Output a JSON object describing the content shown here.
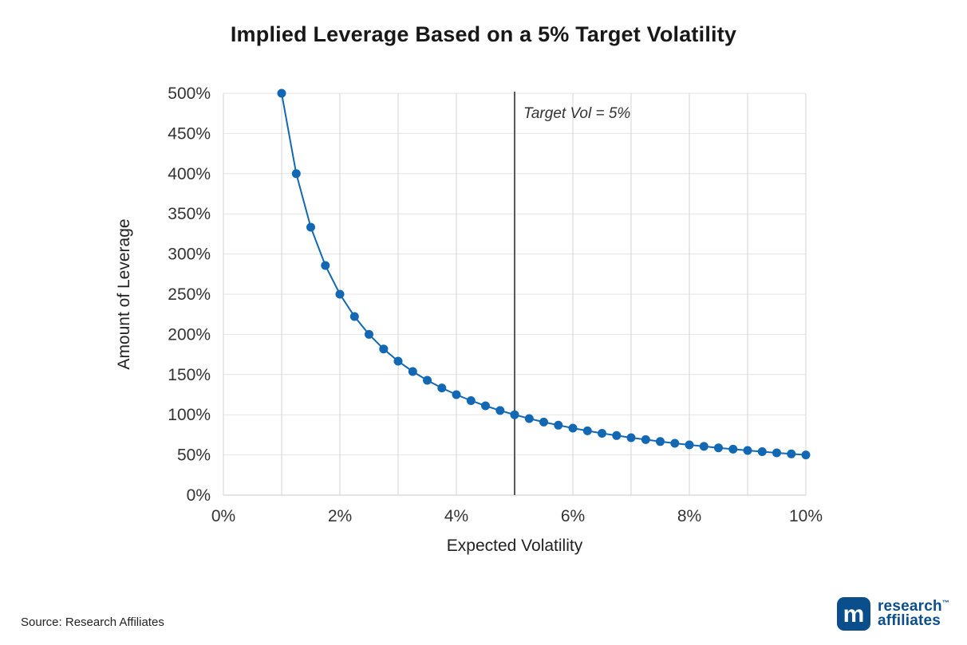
{
  "header": {
    "title": "Implied Leverage Based on a 5% Target Volatility"
  },
  "footer": {
    "source": "Source: Research Affiliates",
    "logo": {
      "line1": "research",
      "tm": "™",
      "line2": "affiliates",
      "monogram": "m"
    }
  },
  "chart_data": {
    "type": "line",
    "title": "Implied Leverage Based on a 5% Target Volatility",
    "xlabel": "Expected Volatility",
    "ylabel": "Amount of Leverage",
    "xlim": [
      0,
      10
    ],
    "ylim": [
      0,
      500
    ],
    "grid": true,
    "grid_x_step": 1,
    "x_ticks": [
      0,
      2,
      4,
      6,
      8,
      10
    ],
    "x_tick_labels": [
      "0%",
      "2%",
      "4%",
      "6%",
      "8%",
      "10%"
    ],
    "y_ticks": [
      0,
      50,
      100,
      150,
      200,
      250,
      300,
      350,
      400,
      450,
      500
    ],
    "y_tick_labels": [
      "0%",
      "50%",
      "100%",
      "150%",
      "200%",
      "250%",
      "300%",
      "350%",
      "400%",
      "450%",
      "500%"
    ],
    "series": [
      {
        "name": "Implied Leverage",
        "x": [
          1,
          1.25,
          1.5,
          1.75,
          2,
          2.25,
          2.5,
          2.75,
          3,
          3.25,
          3.5,
          3.75,
          4,
          4.25,
          4.5,
          4.75,
          5,
          5.25,
          5.5,
          5.75,
          6,
          6.25,
          6.5,
          6.75,
          7,
          7.25,
          7.5,
          7.75,
          8,
          8.25,
          8.5,
          8.75,
          9,
          9.25,
          9.5,
          9.75,
          10
        ],
        "y": [
          500,
          400,
          333.3,
          285.7,
          250,
          222.2,
          200,
          181.8,
          166.7,
          153.8,
          142.9,
          133.3,
          125,
          117.6,
          111.1,
          105.3,
          100,
          95.2,
          90.9,
          87,
          83.3,
          80,
          76.9,
          74.1,
          71.4,
          69,
          66.7,
          64.5,
          62.5,
          60.6,
          58.8,
          57.1,
          55.6,
          54.1,
          52.6,
          51.3,
          50
        ]
      }
    ],
    "annotation": {
      "label": "Target Vol = 5%",
      "x": 5
    },
    "colors": {
      "line": "#1268b3",
      "marker": "#1268b3",
      "grid_vertical": "#d4d4d4",
      "grid_horizontal": "#e4e4e4",
      "baseline": "#c8c8c8",
      "target_line": "#595959",
      "tick_text": "#333333",
      "axis_title_text": "#222222",
      "annotation_text": "#333333"
    }
  }
}
